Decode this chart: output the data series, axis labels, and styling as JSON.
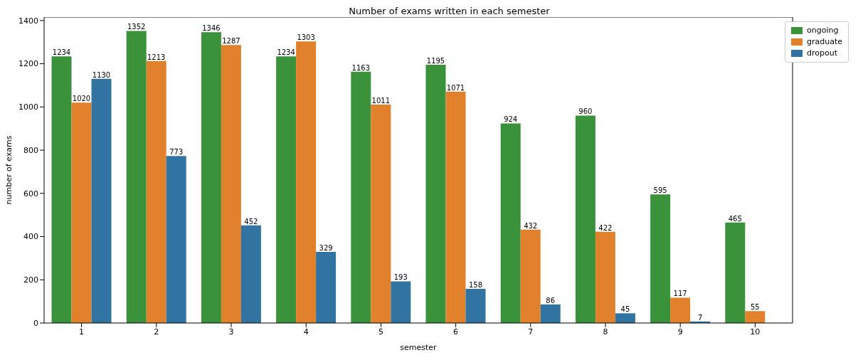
{
  "chart_data": {
    "type": "bar",
    "title": "Number of exams written in each semester",
    "xlabel": "semester",
    "ylabel": "number of exams",
    "categories": [
      "1",
      "2",
      "3",
      "4",
      "5",
      "6",
      "7",
      "8",
      "9",
      "10"
    ],
    "series": [
      {
        "name": "ongoing",
        "color": "#3a923a",
        "values": [
          1234,
          1352,
          1346,
          1234,
          1163,
          1195,
          924,
          960,
          595,
          465
        ]
      },
      {
        "name": "graduate",
        "color": "#e1812c",
        "values": [
          1020,
          1213,
          1287,
          1303,
          1011,
          1071,
          432,
          422,
          117,
          55
        ]
      },
      {
        "name": "dropout",
        "color": "#3274a1",
        "values": [
          1130,
          773,
          452,
          329,
          193,
          158,
          86,
          45,
          7,
          null
        ]
      }
    ],
    "ylim": [
      0,
      1416
    ],
    "yticks": [
      0,
      200,
      400,
      600,
      800,
      1000,
      1200,
      1400
    ],
    "grid": false,
    "legend": "top right",
    "data_labels": true
  }
}
